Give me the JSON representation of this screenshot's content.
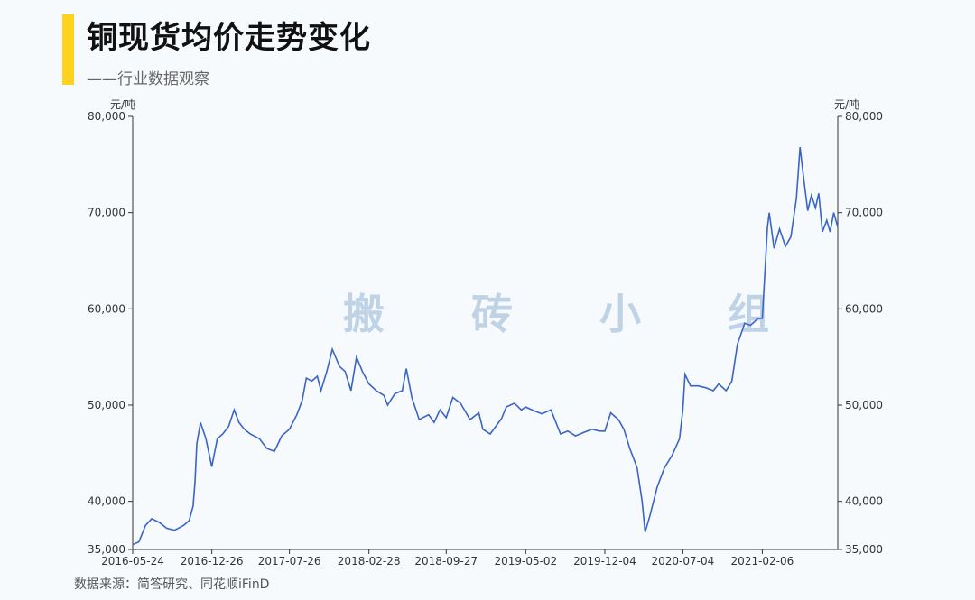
{
  "header": {
    "title": "铜现货均价走势变化",
    "subtitle": "——行业数据观察"
  },
  "watermark": "搬 砖 小 组",
  "footer": {
    "source": "数据来源：简答研究、同花顺iFinD"
  },
  "colors": {
    "line": "#3a64c6",
    "accent": "#ffd21f",
    "axis": "#333333"
  },
  "chart_data": {
    "type": "line",
    "title": "铜现货均价走势变化",
    "ylabel": "元/吨",
    "ylabel_right": "元/吨",
    "ylim": [
      35000,
      80000
    ],
    "yticks": [
      35000,
      40000,
      50000,
      60000,
      70000,
      80000
    ],
    "ytick_labels": [
      "35,000",
      "40,000",
      "50,000",
      "60,000",
      "70,000",
      "80,000"
    ],
    "xlim": [
      "2016-05-24",
      "2021-08-31"
    ],
    "xticks": [
      "2016-05-24",
      "2016-12-26",
      "2017-07-26",
      "2018-02-28",
      "2018-09-27",
      "2019-05-02",
      "2019-12-04",
      "2020-07-04",
      "2021-02-06"
    ],
    "grid": false,
    "series": [
      {
        "name": "",
        "x": [
          "2016-05-24",
          "2016-06-10",
          "2016-06-28",
          "2016-07-15",
          "2016-08-05",
          "2016-08-25",
          "2016-09-15",
          "2016-10-10",
          "2016-10-25",
          "2016-11-05",
          "2016-11-10",
          "2016-11-15",
          "2016-11-25",
          "2016-12-10",
          "2016-12-26",
          "2017-01-10",
          "2017-01-25",
          "2017-02-10",
          "2017-02-25",
          "2017-03-10",
          "2017-03-25",
          "2017-04-10",
          "2017-05-05",
          "2017-05-25",
          "2017-06-15",
          "2017-07-05",
          "2017-07-26",
          "2017-08-15",
          "2017-08-30",
          "2017-09-10",
          "2017-09-25",
          "2017-10-10",
          "2017-10-20",
          "2017-11-05",
          "2017-11-20",
          "2017-12-10",
          "2017-12-25",
          "2018-01-10",
          "2018-01-25",
          "2018-02-10",
          "2018-02-28",
          "2018-03-20",
          "2018-04-10",
          "2018-04-20",
          "2018-05-10",
          "2018-05-30",
          "2018-06-10",
          "2018-06-25",
          "2018-07-15",
          "2018-08-10",
          "2018-08-25",
          "2018-09-10",
          "2018-09-27",
          "2018-10-15",
          "2018-11-05",
          "2018-12-01",
          "2018-12-25",
          "2019-01-05",
          "2019-01-25",
          "2019-02-25",
          "2019-03-10",
          "2019-04-01",
          "2019-04-20",
          "2019-05-02",
          "2019-05-25",
          "2019-06-15",
          "2019-07-10",
          "2019-08-05",
          "2019-08-25",
          "2019-09-15",
          "2019-10-10",
          "2019-10-30",
          "2019-11-20",
          "2019-12-04",
          "2019-12-20",
          "2020-01-10",
          "2020-01-25",
          "2020-02-10",
          "2020-03-01",
          "2020-03-15",
          "2020-03-23",
          "2020-04-05",
          "2020-04-25",
          "2020-05-15",
          "2020-06-05",
          "2020-06-25",
          "2020-07-04",
          "2020-07-10",
          "2020-07-25",
          "2020-08-15",
          "2020-09-05",
          "2020-09-25",
          "2020-10-10",
          "2020-10-30",
          "2020-11-15",
          "2020-11-30",
          "2020-12-20",
          "2021-01-05",
          "2021-01-25",
          "2021-02-06",
          "2021-02-20",
          "2021-02-25",
          "2021-03-10",
          "2021-03-25",
          "2021-04-10",
          "2021-04-25",
          "2021-05-10",
          "2021-05-20",
          "2021-05-30",
          "2021-06-10",
          "2021-06-20",
          "2021-07-01",
          "2021-07-10",
          "2021-07-20",
          "2021-08-01",
          "2021-08-10",
          "2021-08-20",
          "2021-08-31"
        ],
        "values": [
          35500,
          35800,
          37500,
          38200,
          37800,
          37200,
          37000,
          37500,
          38000,
          39500,
          42000,
          46000,
          48200,
          46500,
          43600,
          46500,
          47000,
          47800,
          49500,
          48200,
          47500,
          47000,
          46500,
          45500,
          45200,
          46800,
          47500,
          49000,
          50500,
          52800,
          52500,
          53000,
          51500,
          53500,
          55800,
          54000,
          53500,
          51500,
          55000,
          53500,
          52200,
          51500,
          51000,
          50000,
          51200,
          51500,
          53800,
          50800,
          48500,
          49000,
          48200,
          49500,
          48700,
          50800,
          50200,
          48500,
          49200,
          47500,
          47000,
          48600,
          49800,
          50200,
          49500,
          49800,
          49400,
          49100,
          49500,
          47000,
          47300,
          46800,
          47200,
          47500,
          47300,
          47300,
          49200,
          48500,
          47500,
          45500,
          43500,
          40000,
          36800,
          38500,
          41500,
          43500,
          44800,
          46500,
          49500,
          53200,
          52000,
          52000,
          51800,
          51500,
          52200,
          51500,
          52500,
          56300,
          58500,
          58300,
          59000,
          59000,
          68500,
          70000,
          66300,
          68300,
          66500,
          67500,
          71500,
          76800,
          73500,
          70200,
          71800,
          70500,
          72000,
          68000,
          69200,
          68000,
          70000,
          68500
        ]
      }
    ]
  }
}
